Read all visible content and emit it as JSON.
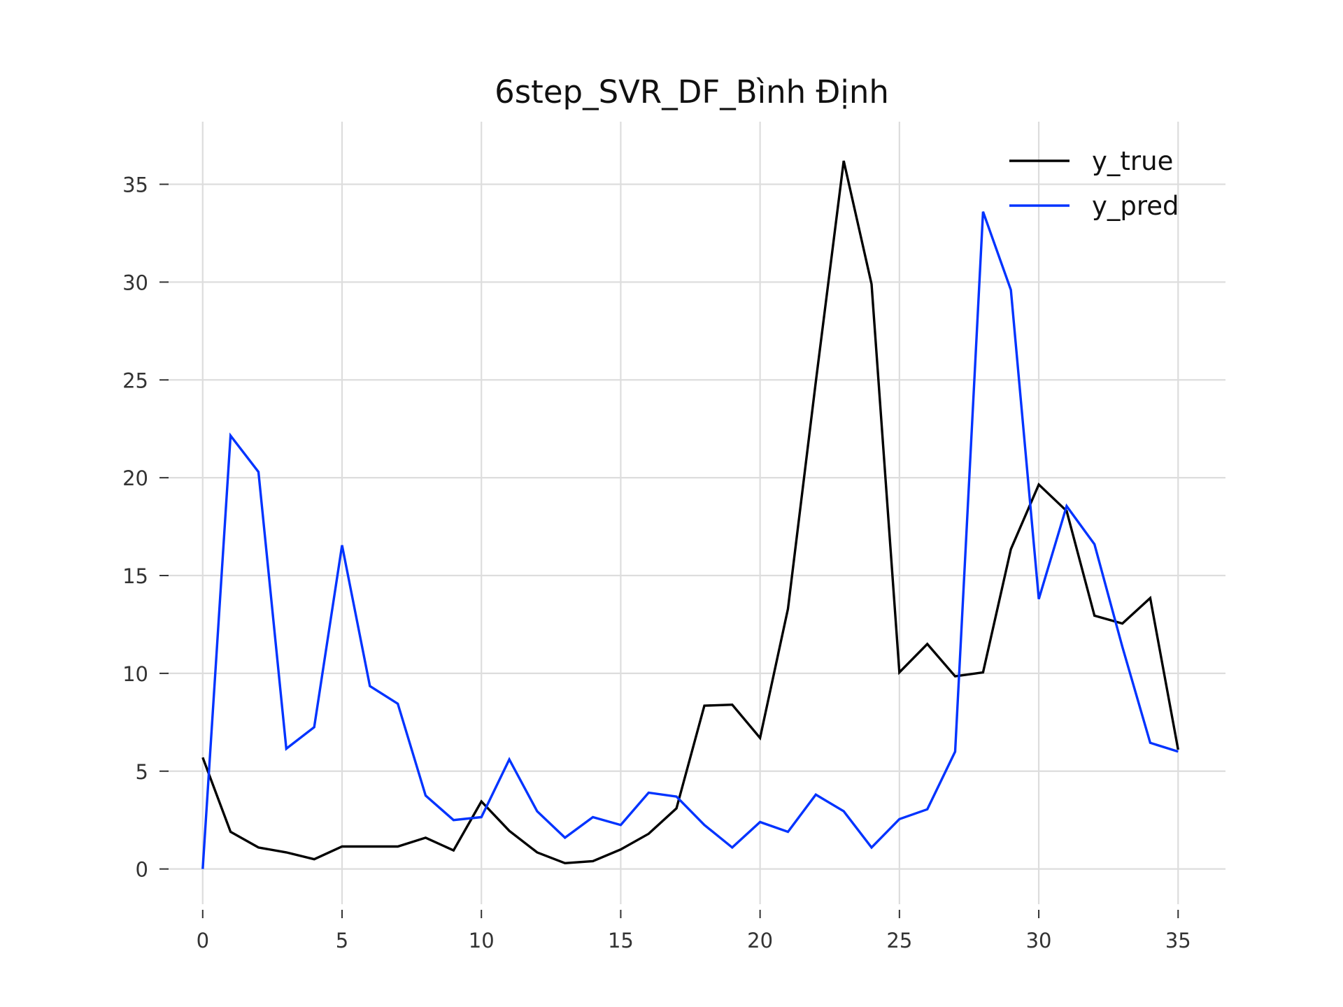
{
  "chart_data": {
    "type": "line",
    "title": "6step_SVR_DF_Bình Định",
    "xlabel": "",
    "ylabel": "",
    "xlim": [
      -1.3,
      36.7
    ],
    "ylim": [
      -1.8,
      38.2
    ],
    "xticks": [
      0,
      5,
      10,
      15,
      20,
      25,
      30,
      35
    ],
    "yticks": [
      0,
      5,
      10,
      15,
      20,
      25,
      30,
      35
    ],
    "grid": true,
    "legend_position": "top-right",
    "x": [
      0,
      1,
      2,
      3,
      4,
      5,
      6,
      7,
      8,
      9,
      10,
      11,
      12,
      13,
      14,
      15,
      16,
      17,
      18,
      19,
      20,
      21,
      22,
      23,
      24,
      25,
      26,
      27,
      28,
      29,
      30,
      31,
      32,
      33,
      34,
      35
    ],
    "series": [
      {
        "name": "y_true",
        "color": "#000000",
        "values": [
          5.7,
          1.9,
          1.1,
          0.85,
          0.5,
          1.15,
          1.15,
          1.15,
          1.6,
          0.95,
          3.45,
          1.95,
          0.85,
          0.3,
          0.4,
          1.0,
          1.8,
          3.1,
          8.35,
          8.4,
          6.7,
          13.3,
          24.9,
          36.2,
          29.9,
          10.05,
          11.5,
          9.85,
          10.05,
          16.35,
          19.65,
          18.3,
          12.95,
          12.55,
          13.85,
          6.1
        ]
      },
      {
        "name": "y_pred",
        "color": "#0033ff",
        "values": [
          0.0,
          22.15,
          20.3,
          6.15,
          7.25,
          16.55,
          9.35,
          8.45,
          3.75,
          2.5,
          2.65,
          5.6,
          2.95,
          1.6,
          2.65,
          2.25,
          3.9,
          3.7,
          2.25,
          1.1,
          2.4,
          1.9,
          3.8,
          2.95,
          1.1,
          2.55,
          3.05,
          6.0,
          33.6,
          29.6,
          13.8,
          18.55,
          16.6,
          11.35,
          6.45,
          6.0
        ]
      }
    ]
  }
}
